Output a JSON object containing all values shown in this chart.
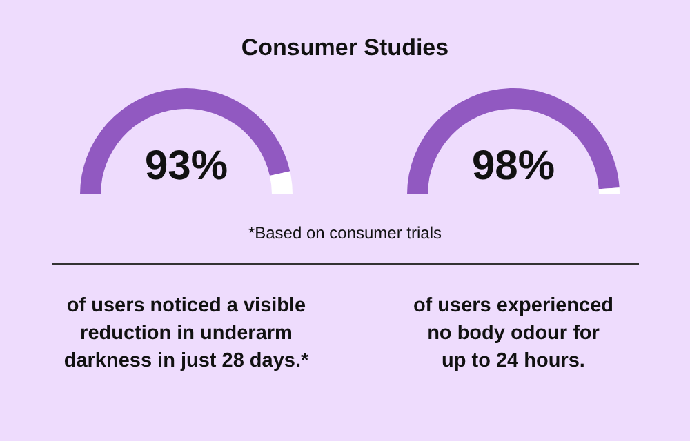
{
  "chart_data": [
    {
      "type": "donut",
      "title": "Consumer Studies",
      "categories": [
        null,
        null
      ],
      "values": [
        93,
        7
      ],
      "colors": [
        "#9159c1",
        "#ffffff"
      ],
      "value_labels": [
        "93%",
        null
      ],
      "annotations": [
        "*Based on consumer trials",
        "of users noticed a visible\nreduction in underarm\ndarkness in just 28 days.*"
      ]
    },
    {
      "type": "donut",
      "categories": [
        null,
        null
      ],
      "values": [
        98,
        2
      ],
      "colors": [
        "#9159c1",
        "#ffffff"
      ],
      "value_labels": [
        "98%",
        null
      ],
      "annotations": [
        "of users experienced\nno body odour for\nup to 24 hours."
      ]
    }
  ]
}
